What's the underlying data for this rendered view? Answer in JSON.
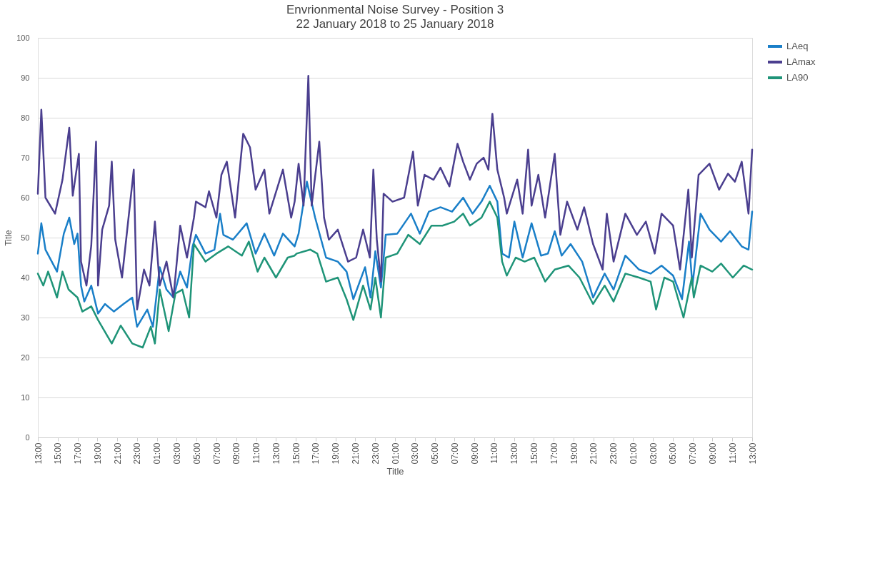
{
  "chart_data": {
    "type": "line",
    "title": "Envrionmental Noise Survey - Position 3",
    "subtitle": "22 January 2018 to 25 January 2018",
    "xlabel": "Title",
    "ylabel": "Title",
    "xlim": [
      "2018-01-22T13:00",
      "2018-01-25T13:00"
    ],
    "ylim": [
      0,
      100
    ],
    "yticks": [
      0,
      10,
      20,
      30,
      40,
      50,
      60,
      70,
      80,
      90,
      100
    ],
    "xticks": [
      {
        "value": "2018-01-22T13:00",
        "label": "13:00"
      },
      {
        "value": "2018-01-22T15:00",
        "label": "15:00"
      },
      {
        "value": "2018-01-22T17:00",
        "label": "17:00"
      },
      {
        "value": "2018-01-22T19:00",
        "label": "19:00"
      },
      {
        "value": "2018-01-22T21:00",
        "label": "21:00"
      },
      {
        "value": "2018-01-22T23:00",
        "label": "23:00"
      },
      {
        "value": "2018-01-23T01:00",
        "label": "01:00"
      },
      {
        "value": "2018-01-23T03:00",
        "label": "03:00"
      },
      {
        "value": "2018-01-23T05:00",
        "label": "05:00"
      },
      {
        "value": "2018-01-23T07:00",
        "label": "07:00"
      },
      {
        "value": "2018-01-23T09:00",
        "label": "09:00"
      },
      {
        "value": "2018-01-23T11:00",
        "label": "11:00"
      },
      {
        "value": "2018-01-23T13:00",
        "label": "13:00"
      },
      {
        "value": "2018-01-23T15:00",
        "label": "15:00"
      },
      {
        "value": "2018-01-23T17:00",
        "label": "17:00"
      },
      {
        "value": "2018-01-23T19:00",
        "label": "19:00"
      },
      {
        "value": "2018-01-23T21:00",
        "label": "21:00"
      },
      {
        "value": "2018-01-23T23:00",
        "label": "23:00"
      },
      {
        "value": "2018-01-24T01:00",
        "label": "01:00"
      },
      {
        "value": "2018-01-24T03:00",
        "label": "03:00"
      },
      {
        "value": "2018-01-24T05:00",
        "label": "05:00"
      },
      {
        "value": "2018-01-24T07:00",
        "label": "07:00"
      },
      {
        "value": "2018-01-24T09:00",
        "label": "09:00"
      },
      {
        "value": "2018-01-24T11:00",
        "label": "11:00"
      },
      {
        "value": "2018-01-24T13:00",
        "label": "13:00"
      },
      {
        "value": "2018-01-24T15:00",
        "label": "15:00"
      },
      {
        "value": "2018-01-24T17:00",
        "label": "17:00"
      },
      {
        "value": "2018-01-24T19:00",
        "label": "19:00"
      },
      {
        "value": "2018-01-24T21:00",
        "label": "21:00"
      },
      {
        "value": "2018-01-24T23:00",
        "label": "23:00"
      },
      {
        "value": "2018-01-25T01:00",
        "label": "01:00"
      },
      {
        "value": "2018-01-25T03:00",
        "label": "03:00"
      },
      {
        "value": "2018-01-25T05:00",
        "label": "05:00"
      },
      {
        "value": "2018-01-25T07:00",
        "label": "07:00"
      },
      {
        "value": "2018-01-25T09:00",
        "label": "09:00"
      },
      {
        "value": "2018-01-25T11:00",
        "label": "11:00"
      },
      {
        "value": "2018-01-25T13:00",
        "label": "13:00"
      }
    ],
    "grid": "y",
    "legend": "right",
    "marker": "none",
    "line_style": "solid",
    "series": [
      {
        "name": "LAeq",
        "color": "#1a7fc8",
        "x": [
          "2018-01-22T13:00",
          "2018-01-22T13:21",
          "2018-01-22T13:46",
          "2018-01-22T14:56",
          "2018-01-22T15:37",
          "2018-01-22T16:10",
          "2018-01-22T16:40",
          "2018-01-22T17:00",
          "2018-01-22T17:21",
          "2018-01-22T17:41",
          "2018-01-22T18:23",
          "2018-01-22T19:04",
          "2018-01-22T19:46",
          "2018-01-22T20:40",
          "2018-01-22T21:38",
          "2018-01-22T22:31",
          "2018-01-22T23:00",
          "2018-01-23T00:02",
          "2018-01-23T00:36",
          "2018-01-23T01:17",
          "2018-01-23T01:58",
          "2018-01-23T02:40",
          "2018-01-23T03:21",
          "2018-01-23T04:02",
          "2018-01-23T04:36",
          "2018-01-23T04:56",
          "2018-01-23T05:54",
          "2018-01-23T06:48",
          "2018-01-23T07:22",
          "2018-01-23T07:42",
          "2018-01-23T08:40",
          "2018-01-23T10:03",
          "2018-01-23T10:57",
          "2018-01-23T11:50",
          "2018-01-23T12:49",
          "2018-01-23T13:42",
          "2018-01-23T14:53",
          "2018-01-23T15:17",
          "2018-01-23T16:07",
          "2018-01-23T16:57",
          "2018-01-23T18:03",
          "2018-01-23T19:14",
          "2018-01-23T20:07",
          "2018-01-23T20:48",
          "2018-01-23T21:59",
          "2018-01-23T22:32",
          "2018-01-23T23:01",
          "2018-01-23T23:35",
          "2018-01-24T00:04",
          "2018-01-24T01:14",
          "2018-01-24T02:37",
          "2018-01-24T03:30",
          "2018-01-24T04:25",
          "2018-01-24T05:35",
          "2018-01-24T06:45",
          "2018-01-24T07:52",
          "2018-01-24T08:49",
          "2018-01-24T09:43",
          "2018-01-24T10:33",
          "2018-01-24T11:19",
          "2018-01-24T11:48",
          "2018-01-24T12:29",
          "2018-01-24T13:02",
          "2018-01-24T13:52",
          "2018-01-24T14:46",
          "2018-01-24T15:43",
          "2018-01-24T16:25",
          "2018-01-24T17:06",
          "2018-01-24T17:48",
          "2018-01-24T18:42",
          "2018-01-24T19:52",
          "2018-01-24T20:58",
          "2018-01-24T22:08",
          "2018-01-24T23:02",
          "2018-01-25T00:13",
          "2018-01-25T01:36",
          "2018-01-25T02:46",
          "2018-01-25T03:52",
          "2018-01-25T05:02",
          "2018-01-25T05:56",
          "2018-01-25T06:38",
          "2018-01-25T06:59",
          "2018-01-25T07:48",
          "2018-01-25T08:42",
          "2018-01-25T09:52",
          "2018-01-25T10:46",
          "2018-01-25T11:57",
          "2018-01-25T12:38",
          "2018-01-25T13:00"
        ],
        "values": [
          46,
          53.6,
          47,
          41.5,
          51,
          55,
          48.4,
          51,
          38,
          34,
          38,
          31,
          33.4,
          31.5,
          33.4,
          35,
          27.7,
          32,
          27.7,
          42.6,
          37,
          35,
          41.5,
          37.5,
          47.8,
          50.7,
          46,
          47,
          56,
          50.7,
          49.5,
          53.6,
          46,
          51,
          45.5,
          51,
          47.8,
          51,
          64,
          55,
          45,
          44,
          41.5,
          34.6,
          42.6,
          35,
          46.6,
          37.5,
          50.7,
          51,
          56,
          51,
          56.5,
          57.6,
          56.5,
          60,
          56,
          59,
          63,
          59,
          46,
          45,
          54,
          45,
          53.6,
          45.5,
          46,
          51.6,
          45.5,
          48.4,
          44,
          35,
          41,
          37,
          45.5,
          42,
          41,
          43,
          40.5,
          34.6,
          49,
          38,
          56,
          52,
          49,
          51.6,
          47.8,
          47,
          56.5
        ]
      },
      {
        "name": "LAmax",
        "color": "#4b3f8f",
        "x": [
          "2018-01-22T13:00",
          "2018-01-22T13:21",
          "2018-01-22T13:46",
          "2018-01-22T14:44",
          "2018-01-22T15:29",
          "2018-01-22T16:10",
          "2018-01-22T16:31",
          "2018-01-22T17:08",
          "2018-01-22T17:21",
          "2018-01-22T17:54",
          "2018-01-22T18:23",
          "2018-01-22T18:52",
          "2018-01-22T19:04",
          "2018-01-22T19:29",
          "2018-01-22T20:11",
          "2018-01-22T20:27",
          "2018-01-22T20:48",
          "2018-01-22T21:29",
          "2018-01-22T22:40",
          "2018-01-22T23:00",
          "2018-01-22T23:42",
          "2018-01-23T00:15",
          "2018-01-23T00:48",
          "2018-01-23T01:17",
          "2018-01-23T01:58",
          "2018-01-23T02:40",
          "2018-01-23T03:21",
          "2018-01-23T04:02",
          "2018-01-23T04:44",
          "2018-01-23T04:56",
          "2018-01-23T05:54",
          "2018-01-23T06:15",
          "2018-01-23T07:00",
          "2018-01-23T07:30",
          "2018-01-23T08:03",
          "2018-01-23T08:53",
          "2018-01-23T09:42",
          "2018-01-23T10:23",
          "2018-01-23T10:57",
          "2018-01-23T11:50",
          "2018-01-23T12:20",
          "2018-01-23T13:42",
          "2018-01-23T14:32",
          "2018-01-23T14:53",
          "2018-01-23T15:17",
          "2018-01-23T15:47",
          "2018-01-23T16:16",
          "2018-01-23T16:36",
          "2018-01-23T17:22",
          "2018-01-23T17:51",
          "2018-01-23T18:20",
          "2018-01-23T19:14",
          "2018-01-23T20:16",
          "2018-01-23T21:05",
          "2018-01-23T21:47",
          "2018-01-23T22:28",
          "2018-01-23T22:49",
          "2018-01-23T23:10",
          "2018-01-23T23:35",
          "2018-01-23T23:51",
          "2018-01-24T00:45",
          "2018-01-24T01:55",
          "2018-01-24T02:49",
          "2018-01-24T03:18",
          "2018-01-24T03:59",
          "2018-01-24T04:53",
          "2018-01-24T05:35",
          "2018-01-24T06:29",
          "2018-01-24T07:18",
          "2018-01-24T07:52",
          "2018-01-24T08:33",
          "2018-01-24T09:14",
          "2018-01-24T09:56",
          "2018-01-24T10:25",
          "2018-01-24T10:49",
          "2018-01-24T11:19",
          "2018-01-24T12:00",
          "2018-01-24T12:16",
          "2018-01-24T13:19",
          "2018-01-24T13:52",
          "2018-01-24T14:25",
          "2018-01-24T14:46",
          "2018-01-24T15:27",
          "2018-01-24T16:08",
          "2018-01-24T17:06",
          "2018-01-24T17:40",
          "2018-01-24T18:21",
          "2018-01-24T19:23",
          "2018-01-24T20:04",
          "2018-01-24T20:58",
          "2018-01-24T21:56",
          "2018-01-24T22:21",
          "2018-01-24T23:02",
          "2018-01-25T00:13",
          "2018-01-25T01:23",
          "2018-01-25T02:17",
          "2018-01-25T03:11",
          "2018-01-25T03:52",
          "2018-01-25T05:02",
          "2018-01-25T05:44",
          "2018-01-25T06:34",
          "2018-01-25T06:55",
          "2018-01-25T07:36",
          "2018-01-25T08:42",
          "2018-01-25T09:40",
          "2018-01-25T10:34",
          "2018-01-25T11:16",
          "2018-01-25T11:57",
          "2018-01-25T12:38",
          "2018-01-25T13:00"
        ],
        "values": [
          61,
          82,
          60,
          56,
          64.5,
          77.5,
          60.5,
          71,
          44,
          38,
          48,
          74,
          38,
          52,
          58,
          69,
          49.5,
          40,
          67,
          32,
          42,
          38,
          54,
          38,
          44,
          35,
          53,
          45,
          55,
          59,
          57.6,
          61.6,
          55,
          65.7,
          69,
          55,
          76,
          72.6,
          62,
          67,
          56,
          67,
          55,
          59,
          68.5,
          58,
          90.5,
          58,
          74,
          55,
          49.5,
          52,
          44,
          45,
          52,
          45,
          67,
          49.5,
          39,
          61,
          59,
          60,
          71.5,
          58,
          65.7,
          64.5,
          67.5,
          62.8,
          73.5,
          69,
          64.5,
          68.5,
          70,
          67,
          81,
          67,
          60,
          56,
          64.5,
          56,
          72,
          58,
          65.7,
          55,
          71,
          50.7,
          59,
          52,
          57.6,
          48.4,
          42,
          56,
          44,
          56,
          50.7,
          54,
          46,
          56,
          53,
          42,
          62,
          45,
          65.7,
          68.5,
          62,
          66,
          64,
          69,
          56,
          72
        ]
      },
      {
        "name": "LA90",
        "color": "#1f9478",
        "x": [
          "2018-01-22T13:00",
          "2018-01-22T13:33",
          "2018-01-22T14:02",
          "2018-01-22T14:56",
          "2018-01-22T15:29",
          "2018-01-22T16:06",
          "2018-01-22T17:00",
          "2018-01-22T17:29",
          "2018-01-22T18:23",
          "2018-01-22T19:04",
          "2018-01-22T20:27",
          "2018-01-22T21:21",
          "2018-01-22T22:31",
          "2018-01-22T23:34",
          "2018-01-23T00:23",
          "2018-01-23T00:48",
          "2018-01-23T01:17",
          "2018-01-23T02:11",
          "2018-01-23T02:52",
          "2018-01-23T03:34",
          "2018-01-23T04:15",
          "2018-01-23T04:44",
          "2018-01-23T05:54",
          "2018-01-23T07:00",
          "2018-01-23T08:11",
          "2018-01-23T09:34",
          "2018-01-23T10:16",
          "2018-01-23T11:09",
          "2018-01-23T11:50",
          "2018-01-23T13:00",
          "2018-01-23T14:11",
          "2018-01-23T14:53",
          "2018-01-23T15:05",
          "2018-01-23T16:28",
          "2018-01-23T17:10",
          "2018-01-23T18:03",
          "2018-01-23T19:14",
          "2018-01-23T20:07",
          "2018-01-23T20:48",
          "2018-01-23T21:47",
          "2018-01-23T22:32",
          "2018-01-23T23:01",
          "2018-01-23T23:35",
          "2018-01-24T00:04",
          "2018-01-24T01:14",
          "2018-01-24T02:20",
          "2018-01-24T03:30",
          "2018-01-24T04:41",
          "2018-01-24T05:47",
          "2018-01-24T06:58",
          "2018-01-24T07:52",
          "2018-01-24T08:33",
          "2018-01-24T09:43",
          "2018-01-24T10:33",
          "2018-01-24T11:19",
          "2018-01-24T11:48",
          "2018-01-24T12:16",
          "2018-01-24T13:10",
          "2018-01-24T14:04",
          "2018-01-24T15:02",
          "2018-01-24T16:08",
          "2018-01-24T17:06",
          "2018-01-24T18:29",
          "2018-01-24T19:36",
          "2018-01-24T20:58",
          "2018-01-24T22:08",
          "2018-01-24T23:02",
          "2018-01-25T00:13",
          "2018-01-25T01:36",
          "2018-01-25T02:46",
          "2018-01-25T03:19",
          "2018-01-25T04:09",
          "2018-01-25T05:02",
          "2018-01-25T06:05",
          "2018-01-25T06:55",
          "2018-01-25T07:07",
          "2018-01-25T07:48",
          "2018-01-25T08:59",
          "2018-01-25T09:52",
          "2018-01-25T11:03",
          "2018-01-25T12:09",
          "2018-01-25T13:00"
        ],
        "values": [
          41,
          38,
          41.5,
          35,
          41.5,
          37,
          35,
          31.5,
          32.8,
          29.4,
          23.5,
          28,
          23.5,
          22.5,
          27.7,
          23.5,
          37,
          26.6,
          36,
          37,
          30,
          48.4,
          44,
          46,
          47.8,
          45.5,
          49,
          41.5,
          45,
          40,
          45,
          45.5,
          46,
          47,
          46,
          39,
          40,
          34.6,
          29.4,
          38,
          32,
          40,
          30,
          45,
          46,
          50.7,
          48.4,
          53,
          53,
          54,
          56,
          53,
          55,
          59,
          55,
          44,
          40.5,
          45,
          44,
          45,
          39,
          42,
          43,
          40,
          33.4,
          38,
          34,
          41,
          40,
          39,
          32,
          40,
          39,
          30,
          40,
          35,
          43,
          41.5,
          43.5,
          40,
          43,
          42
        ]
      }
    ]
  }
}
